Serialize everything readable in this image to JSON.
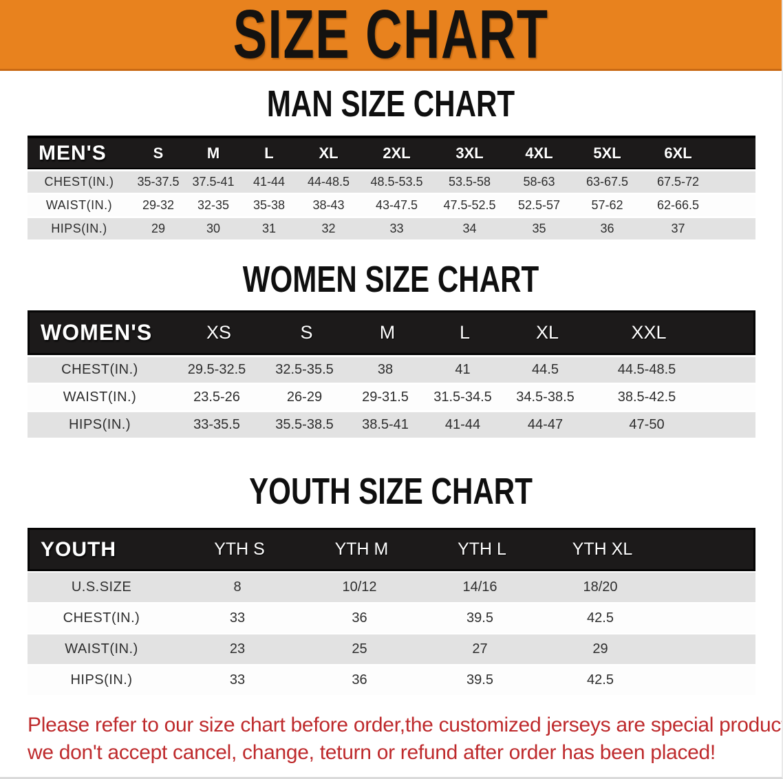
{
  "banner": {
    "title": "SIZE CHART"
  },
  "sections": [
    {
      "id": "men",
      "heading": "MAN SIZE CHART",
      "table": {
        "header_label": "MEN'S",
        "columns": [
          "S",
          "M",
          "L",
          "XL",
          "2XL",
          "3XL",
          "4XL",
          "5XL",
          "6XL"
        ],
        "rows": [
          {
            "label": "CHEST(IN.)",
            "values": [
              "35-37.5",
              "37.5-41",
              "41-44",
              "44-48.5",
              "48.5-53.5",
              "53.5-58",
              "58-63",
              "63-67.5",
              "67.5-72"
            ]
          },
          {
            "label": "WAIST(IN.)",
            "values": [
              "29-32",
              "32-35",
              "35-38",
              "38-43",
              "43-47.5",
              "47.5-52.5",
              "52.5-57",
              "57-62",
              "62-66.5"
            ]
          },
          {
            "label": "HIPS(IN.)",
            "values": [
              "29",
              "30",
              "31",
              "32",
              "33",
              "34",
              "35",
              "36",
              "37"
            ]
          }
        ]
      }
    },
    {
      "id": "women",
      "heading": "WOMEN SIZE CHART",
      "table": {
        "header_label": "WOMEN'S",
        "columns": [
          "XS",
          "S",
          "M",
          "L",
          "XL",
          "XXL"
        ],
        "rows": [
          {
            "label": "CHEST(IN.)",
            "values": [
              "29.5-32.5",
              "32.5-35.5",
              "38",
              "41",
              "44.5",
              "44.5-48.5"
            ]
          },
          {
            "label": "WAIST(IN.)",
            "values": [
              "23.5-26",
              "26-29",
              "29-31.5",
              "31.5-34.5",
              "34.5-38.5",
              "38.5-42.5"
            ]
          },
          {
            "label": "HIPS(IN.)",
            "values": [
              "33-35.5",
              "35.5-38.5",
              "38.5-41",
              "41-44",
              "44-47",
              "47-50"
            ]
          }
        ]
      }
    },
    {
      "id": "youth",
      "heading": "YOUTH SIZE CHART",
      "table": {
        "header_label": "YOUTH",
        "columns": [
          "YTH S",
          "YTH M",
          "YTH L",
          "YTH XL"
        ],
        "rows": [
          {
            "label": "U.S.SIZE",
            "values": [
              "8",
              "10/12",
              "14/16",
              "18/20"
            ]
          },
          {
            "label": "CHEST(IN.)",
            "values": [
              "33",
              "36",
              "39.5",
              "42.5"
            ]
          },
          {
            "label": "WAIST(IN.)",
            "values": [
              "23",
              "25",
              "27",
              "29"
            ]
          },
          {
            "label": "HIPS(IN.)",
            "values": [
              "33",
              "36",
              "39.5",
              "42.5"
            ]
          }
        ]
      }
    }
  ],
  "footer": {
    "line1": "Please refer to our size chart before order,the customized jerseys are special products,",
    "line2": "we don't accept cancel, change, teturn or refund after order has been placed!"
  },
  "colors": {
    "banner_orange": "#E8821E",
    "banner_edge": "#C96913",
    "header_black": "#1C1A1A",
    "row_gray": "#E2E2E2",
    "text_dark": "#2D2D2D",
    "note_red": "#BE2A2C",
    "heading_black": "#0F0F0F"
  }
}
